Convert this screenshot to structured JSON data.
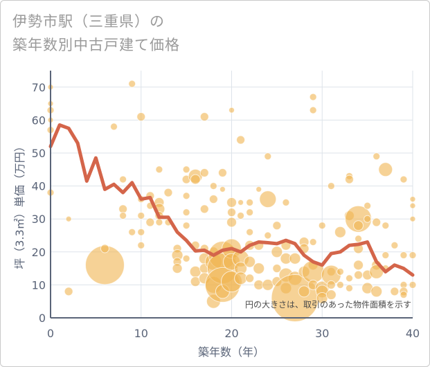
{
  "title_lines": [
    "伊勢市駅（三重県）の",
    "築年数別中古戸建て価格"
  ],
  "chart_data": {
    "type": "scatter",
    "title": "伊勢市駅（三重県）の築年数別中古戸建て価格",
    "xlabel": "築年数（年）",
    "ylabel": "坪（3.3㎡）単価（万円）",
    "xlim": [
      0,
      40
    ],
    "ylim": [
      0,
      75
    ],
    "xticks": [
      0,
      10,
      20,
      30,
      40
    ],
    "yticks": [
      0,
      10,
      20,
      30,
      40,
      50,
      60,
      70
    ],
    "grid": true,
    "annotation": "円の大きさは、取引のあった物件面積を示す",
    "colors": {
      "bubble": "#f0b450",
      "line": "#d4654a",
      "axis": "#5a6478",
      "grid": "#dde3ea"
    },
    "bubble_series": {
      "points": [
        [
          0,
          70,
          4
        ],
        [
          0,
          65,
          4
        ],
        [
          0,
          63,
          5
        ],
        [
          0,
          60,
          4
        ],
        [
          0,
          57,
          5
        ],
        [
          0,
          38,
          5
        ],
        [
          2,
          30,
          4
        ],
        [
          2,
          8,
          6
        ],
        [
          6,
          16,
          28
        ],
        [
          6,
          21,
          6
        ],
        [
          7,
          58,
          5
        ],
        [
          8,
          42,
          5
        ],
        [
          8,
          33,
          6
        ],
        [
          8,
          31,
          5
        ],
        [
          9,
          71,
          5
        ],
        [
          9,
          26,
          5
        ],
        [
          10,
          61,
          6
        ],
        [
          10,
          36,
          5
        ],
        [
          10,
          31,
          5
        ],
        [
          10,
          26,
          5
        ],
        [
          10,
          22,
          5
        ],
        [
          11,
          37,
          6
        ],
        [
          11,
          34,
          5
        ],
        [
          11,
          29,
          6
        ],
        [
          12,
          45,
          5
        ],
        [
          12,
          35,
          7
        ],
        [
          12,
          33,
          8
        ],
        [
          12,
          31,
          6
        ],
        [
          12,
          29,
          5
        ],
        [
          13,
          38,
          6
        ],
        [
          13,
          29,
          5
        ],
        [
          14,
          21,
          6
        ],
        [
          14,
          19,
          8
        ],
        [
          14,
          17,
          6
        ],
        [
          14,
          15,
          7
        ],
        [
          15,
          45,
          5
        ],
        [
          15,
          42,
          6
        ],
        [
          15,
          37,
          5
        ],
        [
          15,
          32,
          5
        ],
        [
          15,
          28,
          5
        ],
        [
          15,
          18,
          5
        ],
        [
          16,
          43,
          10
        ],
        [
          16,
          42,
          7
        ],
        [
          16,
          22,
          6
        ],
        [
          16,
          14,
          8
        ],
        [
          16,
          11,
          7
        ],
        [
          17,
          61,
          6
        ],
        [
          17,
          44,
          6
        ],
        [
          17,
          33,
          6
        ],
        [
          17,
          21,
          6
        ],
        [
          17,
          18,
          8
        ],
        [
          17,
          15,
          7
        ],
        [
          17,
          12,
          8
        ],
        [
          18,
          40,
          5
        ],
        [
          18,
          36,
          6
        ],
        [
          18,
          20,
          7
        ],
        [
          18,
          17,
          12
        ],
        [
          18,
          10,
          12
        ],
        [
          18,
          5,
          10
        ],
        [
          19,
          44,
          6
        ],
        [
          19,
          39,
          4
        ],
        [
          19,
          19,
          20
        ],
        [
          19,
          15,
          22
        ],
        [
          19,
          10,
          25
        ],
        [
          19,
          8,
          10
        ],
        [
          20,
          63,
          4
        ],
        [
          20,
          35,
          7
        ],
        [
          20,
          32,
          6
        ],
        [
          20,
          29,
          7
        ],
        [
          20,
          21,
          14
        ],
        [
          20,
          17,
          12
        ],
        [
          20,
          11,
          15
        ],
        [
          21,
          54,
          6
        ],
        [
          21,
          35,
          4
        ],
        [
          21,
          31,
          5
        ],
        [
          21,
          18,
          12
        ],
        [
          21,
          15,
          9
        ],
        [
          21,
          12,
          9
        ],
        [
          22,
          35,
          5
        ],
        [
          22,
          32,
          5
        ],
        [
          22,
          26,
          5
        ],
        [
          22,
          22,
          7
        ],
        [
          22,
          17,
          8
        ],
        [
          22,
          12,
          6
        ],
        [
          23,
          39,
          4
        ],
        [
          23,
          22,
          7
        ],
        [
          23,
          15,
          8
        ],
        [
          23,
          10,
          7
        ],
        [
          24,
          49,
          5
        ],
        [
          24,
          36,
          12
        ],
        [
          24,
          25,
          5
        ],
        [
          24,
          10,
          8
        ],
        [
          25,
          28,
          6
        ],
        [
          25,
          20,
          8
        ],
        [
          25,
          15,
          6
        ],
        [
          25,
          11,
          7
        ],
        [
          26,
          35,
          5
        ],
        [
          26,
          22,
          7
        ],
        [
          26,
          18,
          8
        ],
        [
          26,
          13,
          10
        ],
        [
          26,
          9,
          8
        ],
        [
          27,
          18,
          8
        ],
        [
          27,
          12,
          10
        ],
        [
          27,
          6,
          34
        ],
        [
          28,
          23,
          7
        ],
        [
          28,
          21,
          7
        ],
        [
          28,
          14,
          8
        ],
        [
          28,
          8,
          8
        ],
        [
          29,
          67,
          5
        ],
        [
          29,
          63,
          5
        ],
        [
          29,
          23,
          5
        ],
        [
          29,
          16,
          7
        ],
        [
          29,
          14,
          16
        ],
        [
          29,
          10,
          7
        ],
        [
          30,
          28,
          5
        ],
        [
          30,
          9,
          10
        ],
        [
          30,
          8,
          9
        ],
        [
          30,
          6,
          8
        ],
        [
          31,
          40,
          5
        ],
        [
          31,
          14,
          6
        ],
        [
          31,
          13,
          14
        ],
        [
          31,
          10,
          6
        ],
        [
          31,
          7,
          7
        ],
        [
          32,
          26,
          8
        ],
        [
          32,
          14,
          5
        ],
        [
          32,
          10,
          5
        ],
        [
          33,
          43,
          5
        ],
        [
          33,
          42,
          6
        ],
        [
          33,
          31,
          7
        ],
        [
          33,
          12,
          5
        ],
        [
          33,
          9,
          5
        ],
        [
          34,
          30,
          19
        ],
        [
          34,
          28,
          7
        ],
        [
          34,
          24,
          5
        ],
        [
          34,
          21,
          7
        ],
        [
          34,
          16,
          7
        ],
        [
          34,
          13,
          6
        ],
        [
          35,
          34,
          5
        ],
        [
          35,
          30,
          5
        ],
        [
          35,
          13,
          7
        ],
        [
          35,
          9,
          8
        ],
        [
          36,
          49,
          5
        ],
        [
          36,
          29,
          6
        ],
        [
          36,
          16,
          7
        ],
        [
          36,
          14,
          10
        ],
        [
          36,
          8,
          8
        ],
        [
          37,
          45,
          10
        ],
        [
          37,
          28,
          5
        ],
        [
          37,
          19,
          5
        ],
        [
          37,
          15,
          5
        ],
        [
          38,
          8,
          6
        ],
        [
          38,
          22,
          5
        ],
        [
          39,
          42,
          5
        ],
        [
          39,
          19,
          5
        ],
        [
          39,
          10,
          5
        ],
        [
          39,
          8,
          6
        ],
        [
          39,
          7,
          5
        ],
        [
          40,
          36,
          4
        ],
        [
          40,
          34,
          4
        ],
        [
          40,
          30,
          4
        ],
        [
          40,
          19,
          5
        ],
        [
          40,
          10,
          5
        ]
      ]
    },
    "line_series": {
      "x": [
        0,
        1,
        2,
        3,
        4,
        5,
        6,
        7,
        8,
        9,
        10,
        11,
        12,
        13,
        14,
        15,
        16,
        17,
        18,
        19,
        20,
        21,
        22,
        23,
        24,
        25,
        26,
        27,
        28,
        29,
        30,
        31,
        32,
        33,
        34,
        35,
        36,
        37,
        38,
        39,
        40
      ],
      "y": [
        52,
        58.5,
        57.5,
        53,
        41.5,
        48.5,
        39,
        40.5,
        38,
        41,
        36,
        36.5,
        30.5,
        30.5,
        26,
        23.5,
        20.3,
        20.5,
        19,
        20.5,
        21,
        20,
        22,
        23,
        22.8,
        22.5,
        23.5,
        22.5,
        19,
        17,
        16,
        19.5,
        20,
        22,
        22.3,
        23,
        17,
        14,
        16,
        15,
        13
      ]
    }
  }
}
